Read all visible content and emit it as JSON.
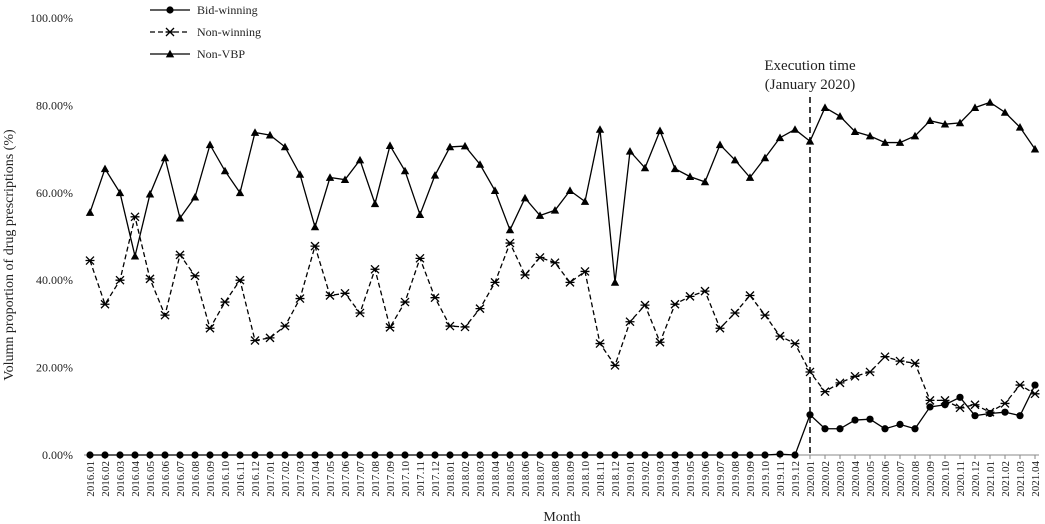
{
  "chart_data": {
    "type": "line",
    "title": "",
    "xlabel": "Month",
    "ylabel": "Volumn proportion of drug prescriptions (%)",
    "ylim": [
      0,
      100
    ],
    "y_ticks": [
      "0.00%",
      "20.00%",
      "40.00%",
      "60.00%",
      "80.00%",
      "100.00%"
    ],
    "grid": false,
    "legend_position": "top-left",
    "annotation": {
      "line1": "Execution time",
      "line2": "(January 2020)",
      "at_category": "2020.01"
    },
    "categories": [
      "2016.01",
      "2016.02",
      "2016.03",
      "2016.04",
      "2016.05",
      "2016.06",
      "2016.07",
      "2016.08",
      "2016.09",
      "2016.10",
      "2016.11",
      "2016.12",
      "2017.01",
      "2017.02",
      "2017.03",
      "2017.04",
      "2017.05",
      "2017.06",
      "2017.07",
      "2017.08",
      "2017.09",
      "2017.10",
      "2017.11",
      "2017.12",
      "2018.01",
      "2018.02",
      "2018.03",
      "2018.04",
      "2018.05",
      "2018.06",
      "2018.07",
      "2018.08",
      "2018.09",
      "2018.10",
      "2018.11",
      "2018.12",
      "2019.01",
      "2019.02",
      "2019.03",
      "2019.04",
      "2019.05",
      "2019.06",
      "2019.07",
      "2019.08",
      "2019.09",
      "2019.10",
      "2019.11",
      "2019.12",
      "2020.01",
      "2020.02",
      "2020.03",
      "2020.04",
      "2020.05",
      "2020.06",
      "2020.07",
      "2020.08",
      "2020.09",
      "2020.10",
      "2020.11",
      "2020.12",
      "2021.01",
      "2021.02",
      "2021.03",
      "2021.04"
    ],
    "series": [
      {
        "name": "Bid-winning",
        "marker": "circle",
        "dash": "solid",
        "values": [
          0,
          0,
          0,
          0,
          0,
          0,
          0,
          0,
          0,
          0,
          0,
          0,
          0,
          0,
          0,
          0,
          0,
          0,
          0,
          0,
          0,
          0,
          0,
          0,
          0,
          0,
          0,
          0,
          0,
          0,
          0,
          0,
          0,
          0,
          0,
          0,
          0,
          0,
          0,
          0,
          0,
          0,
          0,
          0,
          0,
          0,
          0.2,
          0,
          9.2,
          6,
          6,
          8,
          8.2,
          6,
          7,
          6,
          11,
          11.5,
          13.2,
          9,
          9.5,
          9.8,
          9,
          16
        ]
      },
      {
        "name": "Non-winning",
        "marker": "star",
        "dash": "dashed",
        "values": [
          44.5,
          34.5,
          40,
          54.5,
          40.3,
          32,
          45.8,
          41,
          29,
          35,
          40,
          26.2,
          26.8,
          29.5,
          35.8,
          47.8,
          36.5,
          37,
          32.5,
          42.5,
          29.2,
          35,
          45,
          36,
          29.5,
          29.3,
          33.5,
          39.5,
          48.5,
          41.2,
          45.2,
          44,
          39.5,
          42,
          25.5,
          20.5,
          30.5,
          34.3,
          25.8,
          34.5,
          36.3,
          37.5,
          29,
          32.5,
          36.5,
          32,
          27.2,
          25.5,
          19,
          14.5,
          16.5,
          18,
          19,
          22.5,
          21.5,
          21,
          12.5,
          12.5,
          10.8,
          11.5,
          9.8,
          11.8,
          16,
          14
        ]
      },
      {
        "name": "Non-VBP",
        "marker": "triangle",
        "dash": "solid",
        "values": [
          55.5,
          65.5,
          60,
          45.5,
          59.7,
          68,
          54.2,
          59,
          71,
          65,
          60,
          73.8,
          73.2,
          70.5,
          64.2,
          52.2,
          63.5,
          63,
          67.5,
          57.5,
          70.8,
          65,
          55,
          64,
          70.5,
          70.7,
          66.5,
          60.5,
          51.5,
          58.8,
          54.8,
          56,
          60.5,
          58,
          74.5,
          39.5,
          69.5,
          65.7,
          74.2,
          65.5,
          63.7,
          62.5,
          71,
          67.5,
          63.5,
          68,
          72.6,
          74.5,
          71.8,
          79.5,
          77.5,
          74,
          73,
          71.5,
          71.5,
          73,
          76.5,
          75.7,
          76,
          79.5,
          80.7,
          78.4,
          75,
          70
        ]
      }
    ]
  }
}
